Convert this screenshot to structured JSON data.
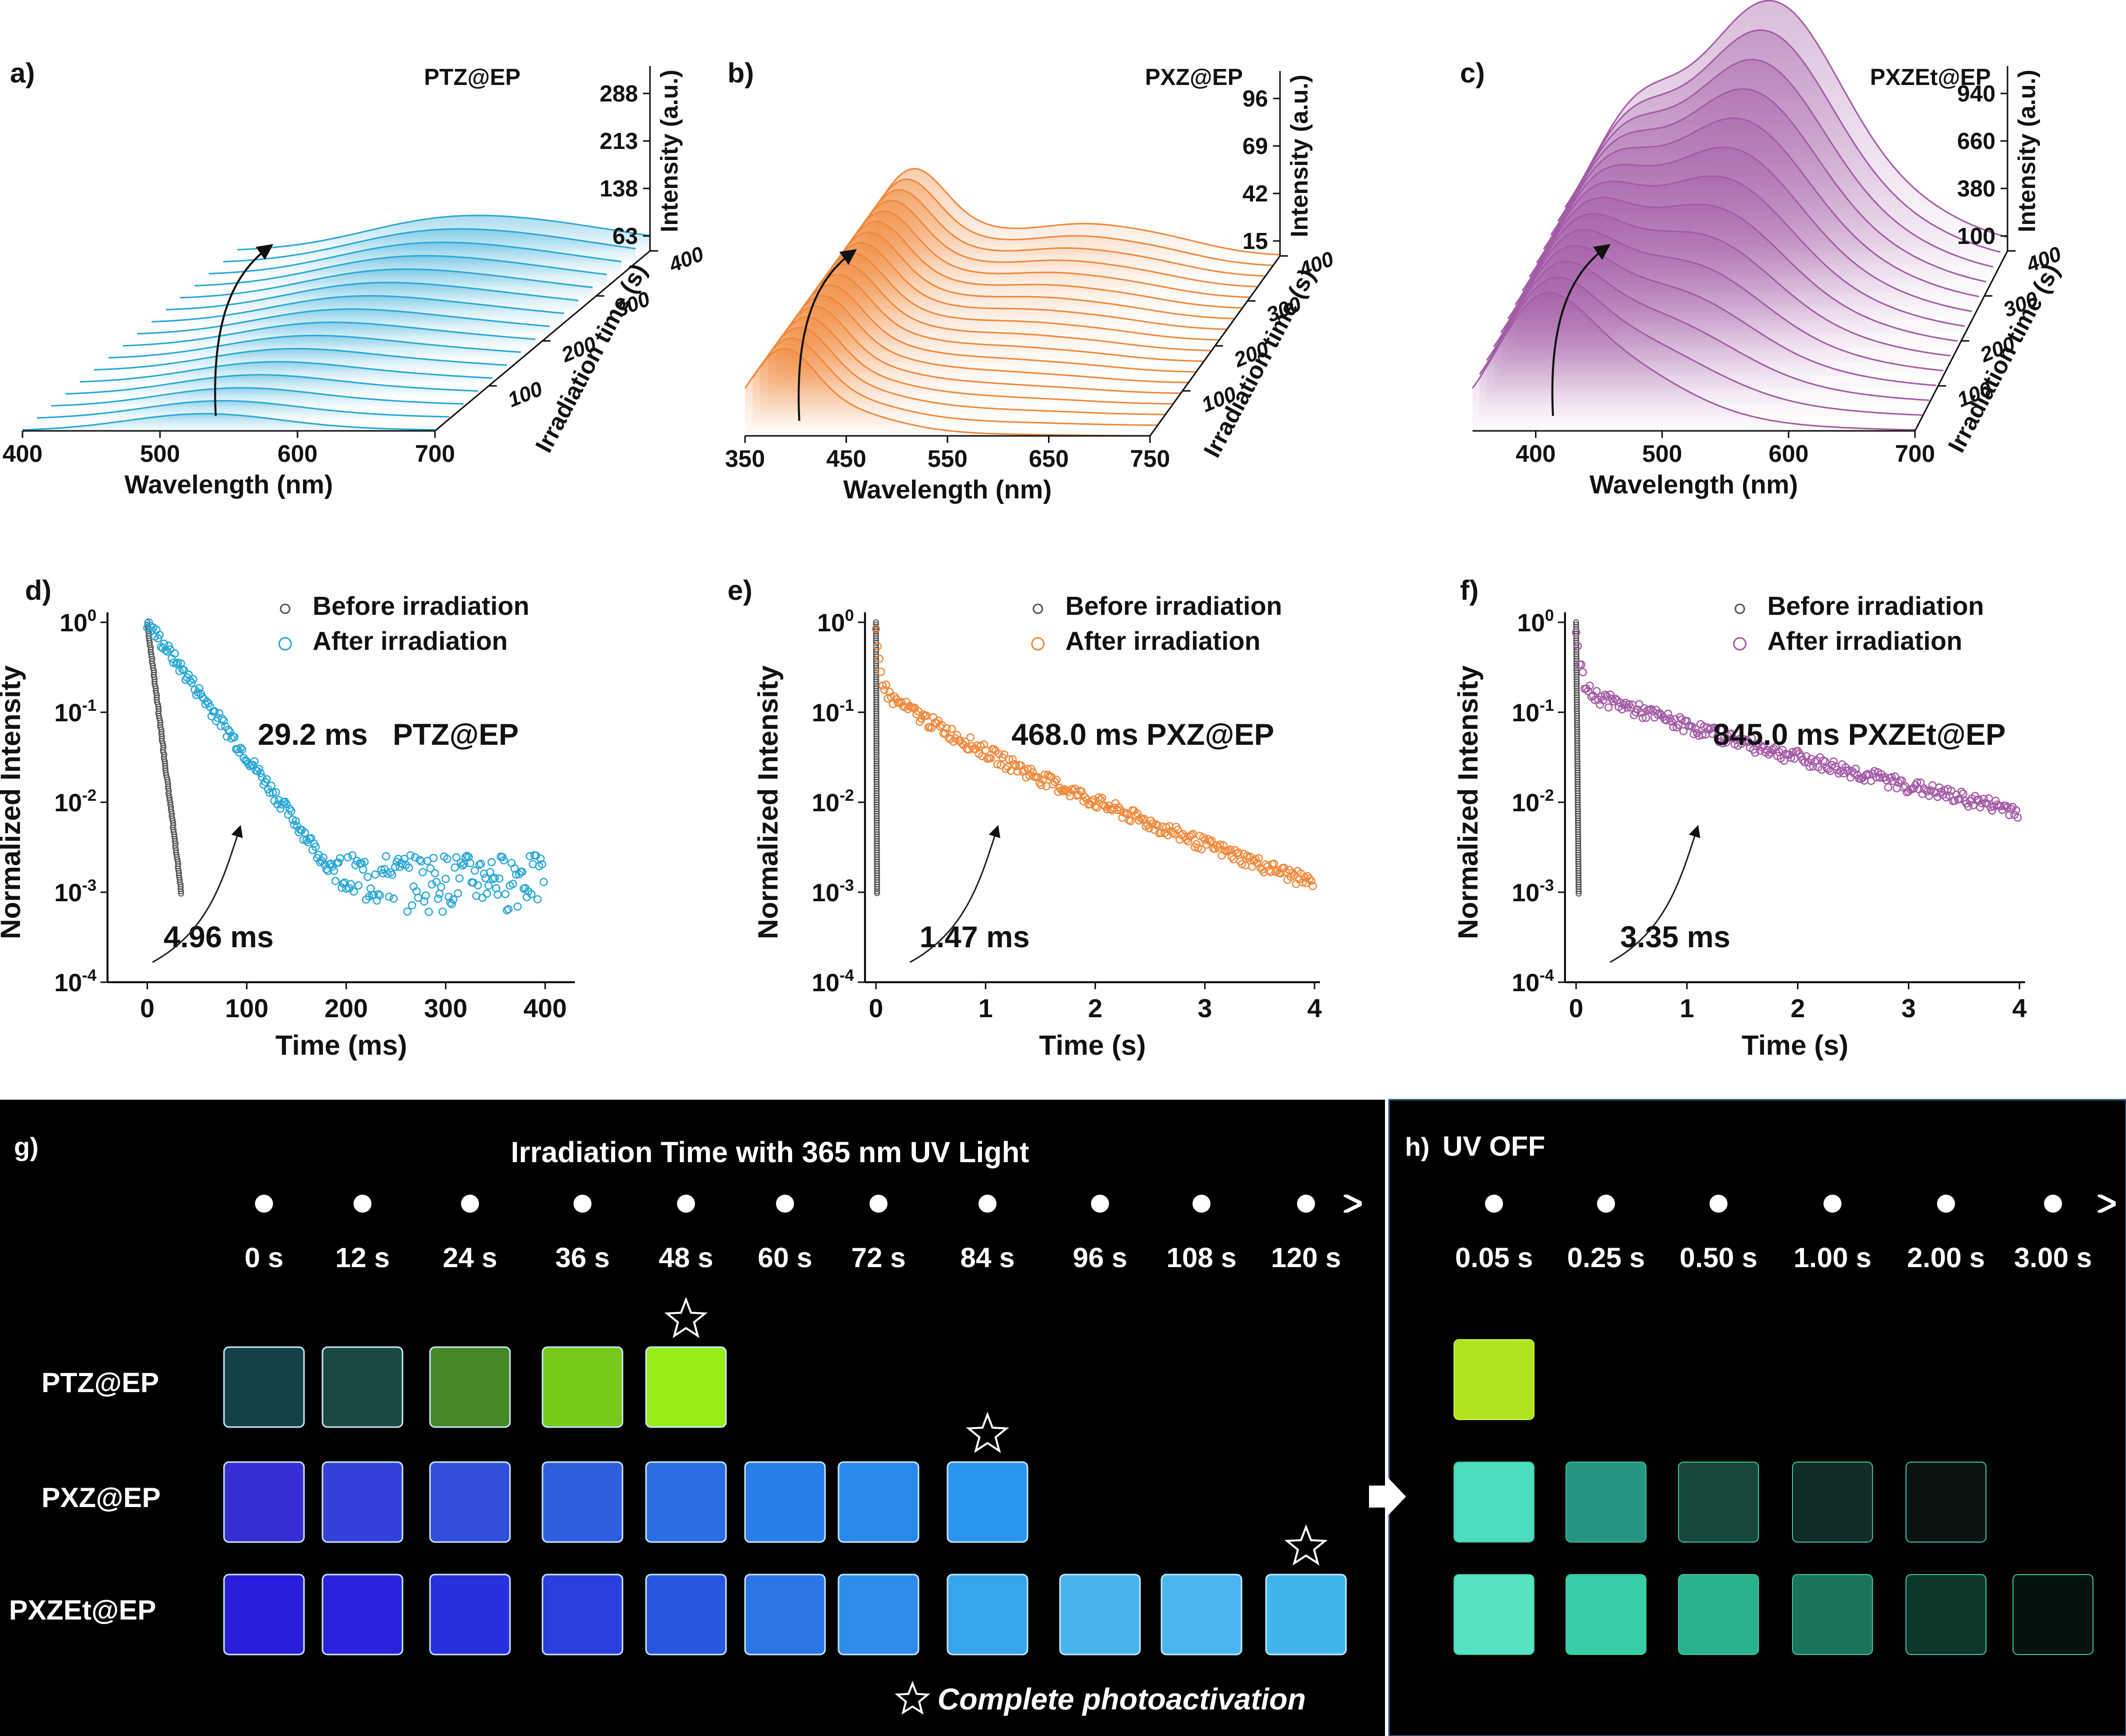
{
  "colors": {
    "PTZ": "#2aa7d6",
    "PTZ_text": "#1f6fb5",
    "PXZ": "#f0883a",
    "PXZE": "#a35ba6",
    "PXZE_text": "#b24ab6",
    "before": "#555555",
    "after_label": "#8a8a8a",
    "photo_bg": "#000000"
  },
  "chart_data": [
    {
      "panel": "a)",
      "type": "line",
      "sample": "PTZ@EP",
      "xlabel": "Wavelength (nm)",
      "ylabel": "Intensity (a.u.)",
      "zlabel": "Irradiation time (s)",
      "x_ticks": [
        "400",
        "500",
        "600",
        "700"
      ],
      "z_ticks": [
        "100",
        "200",
        "300",
        "400"
      ],
      "y_ticks": [
        "63",
        "138",
        "213",
        "288"
      ],
      "xlim": [
        400,
        700
      ],
      "ylim": [
        0,
        300
      ],
      "series_count": 16,
      "peaks_nm": [
        530,
        595
      ],
      "final_peak_intensity": 280
    },
    {
      "panel": "b)",
      "type": "line",
      "sample": "PXZ@EP",
      "xlabel": "Wavelength (nm)",
      "ylabel": "Intensity (a.u.)",
      "zlabel": "Irradiation time (s)",
      "x_ticks": [
        "350",
        "450",
        "550",
        "650",
        "750"
      ],
      "z_ticks": [
        "100",
        "200",
        "300",
        "400"
      ],
      "y_ticks": [
        "15",
        "42",
        "69",
        "96"
      ],
      "xlim": [
        350,
        750
      ],
      "ylim": [
        0,
        100
      ],
      "series_count": 18,
      "peaks_nm": [
        385,
        560
      ],
      "final_peak_intensity": 85
    },
    {
      "panel": "c)",
      "type": "line",
      "sample": "PXZEt@EP",
      "xlabel": "Wavelength (nm)",
      "ylabel": "Intensity (a.u.)",
      "zlabel": "Irradiation time (s)",
      "x_ticks": [
        "400",
        "500",
        "600",
        "700"
      ],
      "z_ticks": [
        "100",
        "200",
        "300",
        "400"
      ],
      "y_ticks": [
        "100",
        "380",
        "660",
        "940"
      ],
      "xlim": [
        350,
        700
      ],
      "ylim": [
        0,
        1000
      ],
      "series_count": 14,
      "peaks_nm": [
        400,
        515
      ],
      "final_peak_intensity": 900
    },
    {
      "panel": "d)",
      "type": "scatter",
      "sample": "PTZ@EP",
      "xlabel": "Time (ms)",
      "ylabel": "Normalized Intensity",
      "x_ticks": [
        "0",
        "100",
        "200",
        "300",
        "400"
      ],
      "y_ticks": [
        "10-4",
        "10-3",
        "10-2",
        "10-1",
        "100"
      ],
      "xlim": [
        -40,
        430
      ],
      "ylim_log10": [
        -4,
        0
      ],
      "yscale": "log",
      "series": [
        {
          "name": "Before irradiation",
          "lifetime": 4.96,
          "noise_floor": 0.00035
        },
        {
          "name": "After irradiation",
          "lifetime": 29.2,
          "noise_floor": 0.001
        }
      ],
      "annot_after": "29.2 ms",
      "annot_before": "4.96 ms",
      "tag": "PTZ@EP"
    },
    {
      "panel": "e)",
      "type": "scatter",
      "sample": "PXZ@EP",
      "xlabel": "Time (s)",
      "ylabel": "Normalized Intensity",
      "x_ticks": [
        "0",
        "1",
        "2",
        "3",
        "4"
      ],
      "y_ticks": [
        "10-4",
        "10-3",
        "10-2",
        "10-1",
        "100"
      ],
      "xlim": [
        -0.1,
        4.05
      ],
      "ylim_log10": [
        -4,
        0
      ],
      "yscale": "log",
      "series": [
        {
          "name": "Before irradiation",
          "lifetime": 1.47,
          "noise_floor": 0.0003
        },
        {
          "name": "After irradiation",
          "lifetime": 468.0,
          "noise_floor": 0.0005
        }
      ],
      "annot_after": "468.0 ms",
      "annot_before": "1.47 ms",
      "tag": "PXZ@EP"
    },
    {
      "panel": "f)",
      "type": "scatter",
      "sample": "PXZEt@EP",
      "xlabel": "Time (s)",
      "ylabel": "Normalized Intensity",
      "x_ticks": [
        "0",
        "1",
        "2",
        "3",
        "4"
      ],
      "y_ticks": [
        "10-4",
        "10-3",
        "10-2",
        "10-1",
        "100"
      ],
      "xlim": [
        -0.1,
        4.05
      ],
      "ylim_log10": [
        -4,
        0
      ],
      "yscale": "log",
      "series": [
        {
          "name": "Before irradiation",
          "lifetime": 3.35,
          "noise_floor": 0.0003
        },
        {
          "name": "After irradiation",
          "lifetime": 845.0,
          "noise_floor": 0.0005
        }
      ],
      "annot_after": "845.0 ms",
      "annot_before": "3.35 ms",
      "tag": "PXZEt@EP"
    }
  ],
  "photos": {
    "g": {
      "label": "g)",
      "title": "Irradiation Time with 365 nm UV  Light",
      "times": [
        "0 s",
        "12 s",
        "24 s",
        "36 s",
        "48 s",
        "60 s",
        "72 s",
        "84 s",
        "96 s",
        "108 s",
        "120 s"
      ],
      "rows": [
        {
          "name": "PTZ@EP",
          "count": 5,
          "star_index": 4,
          "colors": [
            "#17424a",
            "#1d4a44",
            "#4a8a26",
            "#7acc1a",
            "#9cf21a"
          ]
        },
        {
          "name": "PXZ@EP",
          "count": 8,
          "star_index": 7,
          "colors": [
            "#3a2ed8",
            "#3642dc",
            "#3450e0",
            "#3060e4",
            "#2c70e8",
            "#2a80ec",
            "#2a8cf0",
            "#2c98f2"
          ]
        },
        {
          "name": "PXZEt@EP",
          "count": 11,
          "star_index": 10,
          "colors": [
            "#2a1ee0",
            "#2a24e2",
            "#2a30e2",
            "#2a40e2",
            "#2a58e4",
            "#2c78ea",
            "#2e90ee",
            "#3aa8f0",
            "#4ab8f2",
            "#4cbaf4",
            "#44b8f2"
          ]
        }
      ],
      "legend": "Complete photoactivation"
    },
    "h": {
      "label": "h)",
      "title": "UV OFF",
      "times": [
        "0.05 s",
        "0.25 s",
        "0.50 s",
        "1.00 s",
        "2.00 s",
        "3.00 s"
      ],
      "rows": [
        {
          "name": "PTZ@EP",
          "colors": [
            "#b8f020",
            "",
            "",
            "",
            "",
            ""
          ]
        },
        {
          "name": "PXZ@EP",
          "colors": [
            "#52e8c8",
            "#2a9e86",
            "#1b4a40",
            "#122e2a",
            "#0a1614",
            ""
          ]
        },
        {
          "name": "PXZEt@EP",
          "colors": [
            "#5cf0cc",
            "#3ad8b0",
            "#2cbc94",
            "#1c7a60",
            "#0f3a2e",
            "#07140f"
          ]
        }
      ]
    }
  }
}
